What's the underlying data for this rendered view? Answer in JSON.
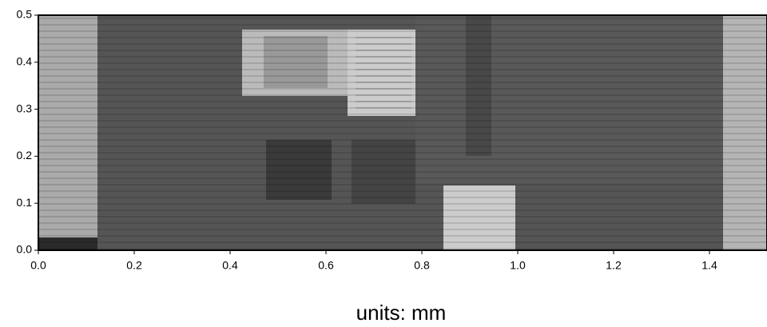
{
  "chart_data": {
    "type": "image",
    "x_label": "units: mm",
    "xlim": [
      0,
      1.52
    ],
    "ylim": [
      0,
      0.5
    ],
    "xticks": [
      {
        "value": 0,
        "label": "0.0"
      },
      {
        "value": 0.2,
        "label": "0.2"
      },
      {
        "value": 0.4,
        "label": "0.4"
      },
      {
        "value": 0.6,
        "label": "0.6"
      },
      {
        "value": 0.8,
        "label": "0.8"
      },
      {
        "value": 1,
        "label": "1.0"
      },
      {
        "value": 1.2,
        "label": "1.2"
      },
      {
        "value": 1.4,
        "label": "1.4"
      }
    ],
    "yticks": [
      {
        "value": 0,
        "label": "0.0"
      },
      {
        "value": 0.1,
        "label": "0.1"
      },
      {
        "value": 0.2,
        "label": "0.2"
      },
      {
        "value": 0.3,
        "label": "0.3"
      },
      {
        "value": 0.4,
        "label": "0.4"
      },
      {
        "value": 0.5,
        "label": "0.5"
      }
    ]
  }
}
